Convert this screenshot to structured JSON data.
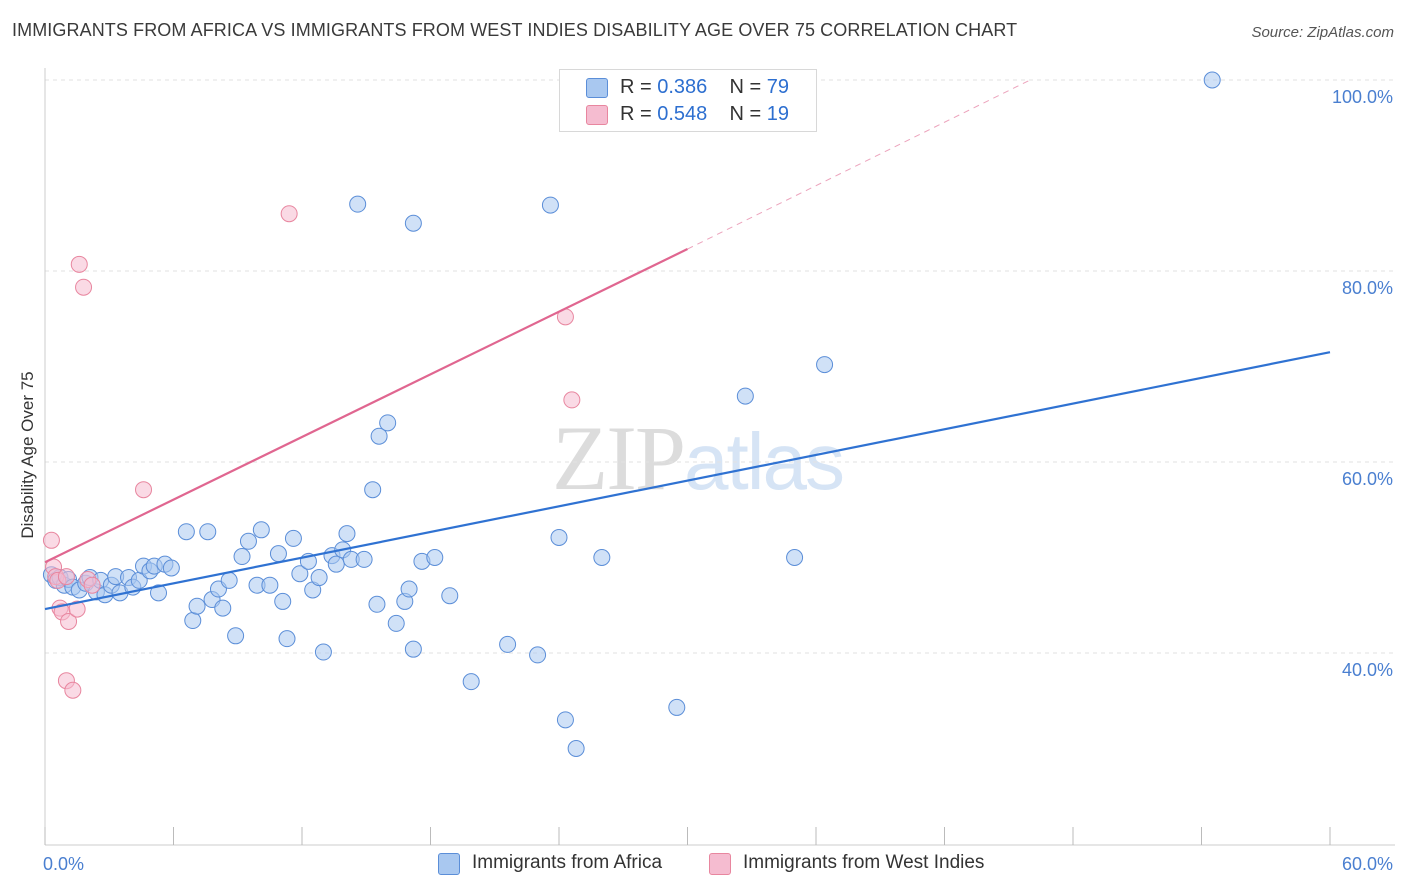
{
  "header": {
    "title": "IMMIGRANTS FROM AFRICA VS IMMIGRANTS FROM WEST INDIES DISABILITY AGE OVER 75 CORRELATION CHART",
    "source": "Source: ZipAtlas.com"
  },
  "watermark": {
    "zip": "ZIP",
    "atlas": "atlas"
  },
  "legend": {
    "rows": [
      {
        "r_label": "R = ",
        "r_value": "0.386",
        "n_label": "N = ",
        "n_value": "79"
      },
      {
        "r_label": "R = ",
        "r_value": "0.548",
        "n_label": "N = ",
        "n_value": "19"
      }
    ]
  },
  "colors": {
    "africa_fill": "#a9c8f0",
    "africa_stroke": "#5b8ed8",
    "africa_line": "#2f72d2",
    "westindies_fill": "#f5bcd0",
    "westindies_stroke": "#e8869f",
    "westindies_line": "#e06690",
    "grid": "#e2e2e2",
    "tick_label": "#4a7fd0"
  },
  "chart_data": {
    "type": "scatter",
    "title": "IMMIGRANTS FROM AFRICA VS IMMIGRANTS FROM WEST INDIES DISABILITY AGE OVER 75 CORRELATION CHART",
    "xlabel": "",
    "ylabel": "Disability Age Over 75",
    "xlim": [
      0,
      60
    ],
    "ylim": [
      20,
      102
    ],
    "x_tick_labels": [
      "0.0%",
      "60.0%"
    ],
    "y_ticks": [
      40,
      60,
      80,
      100
    ],
    "y_tick_labels": [
      "40.0%",
      "60.0%",
      "80.0%",
      "100.0%"
    ],
    "grid": true,
    "series": [
      {
        "name": "Immigrants from Africa",
        "r": 0.386,
        "n": 79,
        "trend": {
          "x0": 0,
          "y0": 44.6,
          "x1": 60,
          "y1": 71.5,
          "dashed_from": null
        },
        "points": [
          [
            0.3,
            48.2
          ],
          [
            0.5,
            47.6
          ],
          [
            0.7,
            47.9
          ],
          [
            0.9,
            47.1
          ],
          [
            1.1,
            47.7
          ],
          [
            1.3,
            46.9
          ],
          [
            1.6,
            46.6
          ],
          [
            1.9,
            47.3
          ],
          [
            2.1,
            47.9
          ],
          [
            2.4,
            46.4
          ],
          [
            2.6,
            47.6
          ],
          [
            2.8,
            46.1
          ],
          [
            3.1,
            47.1
          ],
          [
            3.3,
            48.0
          ],
          [
            3.5,
            46.3
          ],
          [
            3.9,
            47.9
          ],
          [
            4.1,
            46.9
          ],
          [
            4.4,
            47.6
          ],
          [
            4.6,
            49.1
          ],
          [
            4.9,
            48.6
          ],
          [
            5.1,
            49.1
          ],
          [
            5.3,
            46.3
          ],
          [
            5.6,
            49.3
          ],
          [
            5.9,
            48.9
          ],
          [
            6.6,
            52.7
          ],
          [
            6.9,
            43.4
          ],
          [
            7.1,
            44.9
          ],
          [
            7.6,
            52.7
          ],
          [
            7.8,
            45.6
          ],
          [
            8.1,
            46.7
          ],
          [
            8.3,
            44.7
          ],
          [
            8.6,
            47.6
          ],
          [
            8.9,
            41.8
          ],
          [
            9.2,
            50.1
          ],
          [
            9.5,
            51.7
          ],
          [
            9.9,
            47.1
          ],
          [
            10.1,
            52.9
          ],
          [
            10.5,
            47.1
          ],
          [
            10.9,
            50.4
          ],
          [
            11.1,
            45.4
          ],
          [
            11.3,
            41.5
          ],
          [
            11.6,
            52.0
          ],
          [
            11.9,
            48.3
          ],
          [
            12.3,
            49.6
          ],
          [
            12.5,
            46.6
          ],
          [
            12.8,
            47.9
          ],
          [
            13.0,
            40.1
          ],
          [
            13.4,
            50.2
          ],
          [
            13.6,
            49.3
          ],
          [
            13.9,
            50.8
          ],
          [
            14.1,
            52.5
          ],
          [
            14.3,
            49.8
          ],
          [
            14.9,
            49.8
          ],
          [
            14.6,
            87.0
          ],
          [
            15.3,
            57.1
          ],
          [
            15.5,
            45.1
          ],
          [
            15.6,
            62.7
          ],
          [
            16.0,
            64.1
          ],
          [
            16.4,
            43.1
          ],
          [
            16.8,
            45.4
          ],
          [
            17.0,
            46.7
          ],
          [
            17.2,
            40.4
          ],
          [
            17.6,
            49.6
          ],
          [
            17.2,
            85.0
          ],
          [
            18.2,
            50.0
          ],
          [
            18.9,
            46.0
          ],
          [
            19.9,
            37.0
          ],
          [
            21.6,
            40.9
          ],
          [
            23.0,
            39.8
          ],
          [
            23.6,
            86.9
          ],
          [
            24.0,
            52.1
          ],
          [
            24.3,
            33.0
          ],
          [
            24.8,
            30.0
          ],
          [
            26.0,
            50.0
          ],
          [
            29.5,
            34.3
          ],
          [
            32.7,
            66.9
          ],
          [
            35.0,
            50.0
          ],
          [
            36.4,
            70.2
          ],
          [
            54.5,
            100.0
          ]
        ]
      },
      {
        "name": "Immigrants from West Indies",
        "r": 0.548,
        "n": 19,
        "trend": {
          "x0": 0,
          "y0": 49.5,
          "x1": 30.0,
          "y1": 82.3,
          "dashed_to_x": 46.0,
          "dashed_to_y": 100.0
        },
        "points": [
          [
            0.3,
            51.8
          ],
          [
            0.4,
            49.0
          ],
          [
            0.5,
            48.0
          ],
          [
            0.6,
            47.6
          ],
          [
            0.7,
            44.7
          ],
          [
            0.8,
            44.3
          ],
          [
            1.0,
            48.0
          ],
          [
            1.0,
            37.1
          ],
          [
            1.1,
            43.3
          ],
          [
            1.3,
            36.1
          ],
          [
            1.5,
            44.6
          ],
          [
            1.6,
            80.7
          ],
          [
            1.8,
            78.3
          ],
          [
            2.0,
            47.7
          ],
          [
            2.2,
            47.1
          ],
          [
            4.6,
            57.1
          ],
          [
            11.4,
            86.0
          ],
          [
            24.3,
            75.2
          ],
          [
            24.6,
            66.5
          ]
        ]
      }
    ]
  }
}
